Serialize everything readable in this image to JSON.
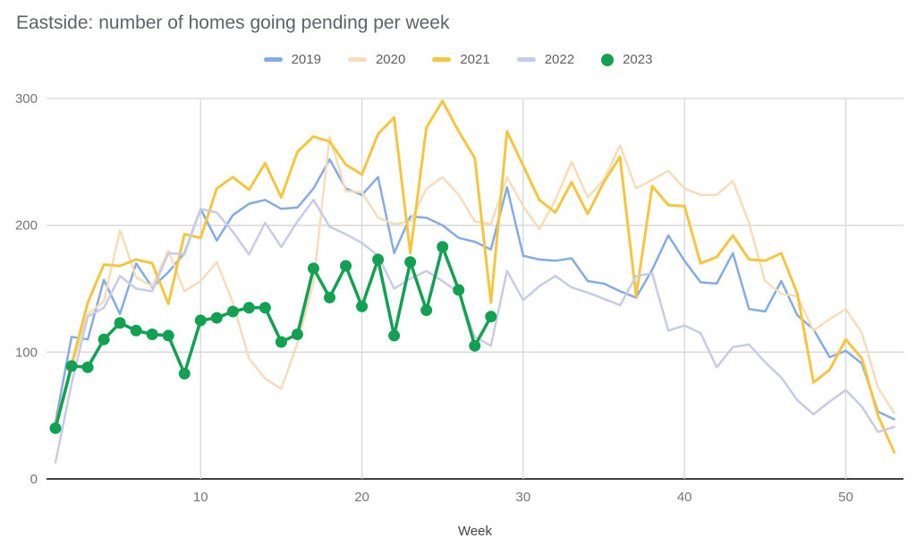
{
  "chart": {
    "title": "Eastside: number of homes going pending per week"
  },
  "colors": {
    "s2019": "#84ace4",
    "s2020": "#f6ddba",
    "s2021": "#f4c63f",
    "s2022": "#c7cbe6",
    "s2023": "#12a152",
    "grid": "#d6d6d6",
    "axis_line": "#424242",
    "tick_label": "#757575",
    "axis_title": "#424242",
    "title_text": "#5f6368",
    "legend_text": "#616161"
  },
  "chart_data": {
    "type": "line",
    "title": "Eastside: number of homes going pending per week",
    "xlabel": "Week",
    "ylabel": "",
    "x_ticks": [
      10,
      20,
      30,
      40,
      50
    ],
    "y_ticks": [
      0,
      100,
      200,
      300
    ],
    "xlim": [
      1,
      53
    ],
    "ylim": [
      0,
      300
    ],
    "grid": true,
    "legend_position": "top",
    "series": [
      {
        "name": "2019",
        "color": "#84ace4",
        "marker": "none",
        "width": 2.5,
        "x_start": 1,
        "values": [
          45,
          112,
          110,
          157,
          130,
          170,
          151,
          163,
          178,
          213,
          188,
          208,
          217,
          220,
          213,
          214,
          229,
          252,
          229,
          224,
          238,
          178,
          207,
          206,
          200,
          190,
          187,
          181,
          230,
          176,
          173,
          172,
          174,
          156,
          154,
          148,
          143,
          165,
          192,
          172,
          155,
          154,
          178,
          134,
          132,
          156,
          129,
          118,
          96,
          101,
          91,
          53,
          47
        ]
      },
      {
        "name": "2020",
        "color": "#f6ddba",
        "marker": "none",
        "width": 2.5,
        "x_start": 1,
        "values": [
          40,
          88,
          130,
          140,
          196,
          159,
          152,
          180,
          148,
          156,
          171,
          139,
          95,
          79,
          71,
          107,
          155,
          270,
          227,
          226,
          206,
          201,
          203,
          229,
          238,
          224,
          203,
          201,
          238,
          215,
          197,
          220,
          250,
          222,
          236,
          263,
          229,
          236,
          243,
          229,
          224,
          224,
          235,
          202,
          156,
          146,
          144,
          117,
          126,
          134,
          115,
          72,
          52
        ]
      },
      {
        "name": "2021",
        "color": "#f4c63f",
        "marker": "none",
        "width": 3,
        "x_start": 1,
        "values": [
          42,
          90,
          139,
          169,
          168,
          173,
          170,
          138,
          193,
          190,
          229,
          238,
          228,
          249,
          222,
          258,
          270,
          266,
          248,
          240,
          272,
          285,
          178,
          277,
          298,
          274,
          253,
          139,
          274,
          247,
          220,
          210,
          234,
          209,
          234,
          254,
          144,
          231,
          216,
          215,
          170,
          175,
          192,
          173,
          172,
          178,
          146,
          76,
          86,
          110,
          95,
          50,
          21
        ]
      },
      {
        "name": "2022",
        "color": "#c7cbe6",
        "marker": "none",
        "width": 2.5,
        "x_start": 1,
        "values": [
          13,
          75,
          128,
          135,
          160,
          150,
          148,
          178,
          177,
          213,
          210,
          195,
          177,
          202,
          183,
          203,
          220,
          199,
          193,
          186,
          176,
          150,
          158,
          164,
          156,
          147,
          112,
          105,
          164,
          141,
          152,
          160,
          151,
          147,
          142,
          137,
          160,
          162,
          117,
          121,
          115,
          88,
          104,
          106,
          92,
          80,
          62,
          51,
          61,
          70,
          57,
          37,
          41
        ]
      },
      {
        "name": "2023",
        "color": "#12a152",
        "marker": "circle",
        "width": 3.5,
        "x_start": 1,
        "values": [
          40,
          89,
          88,
          110,
          123,
          117,
          114,
          113,
          83,
          125,
          127,
          132,
          135,
          135,
          108,
          114,
          166,
          143,
          168,
          136,
          173,
          113,
          171,
          133,
          183,
          149,
          105,
          128
        ]
      }
    ]
  },
  "legend": {
    "items": [
      {
        "label": "2019"
      },
      {
        "label": "2020"
      },
      {
        "label": "2021"
      },
      {
        "label": "2022"
      },
      {
        "label": "2023"
      }
    ]
  }
}
